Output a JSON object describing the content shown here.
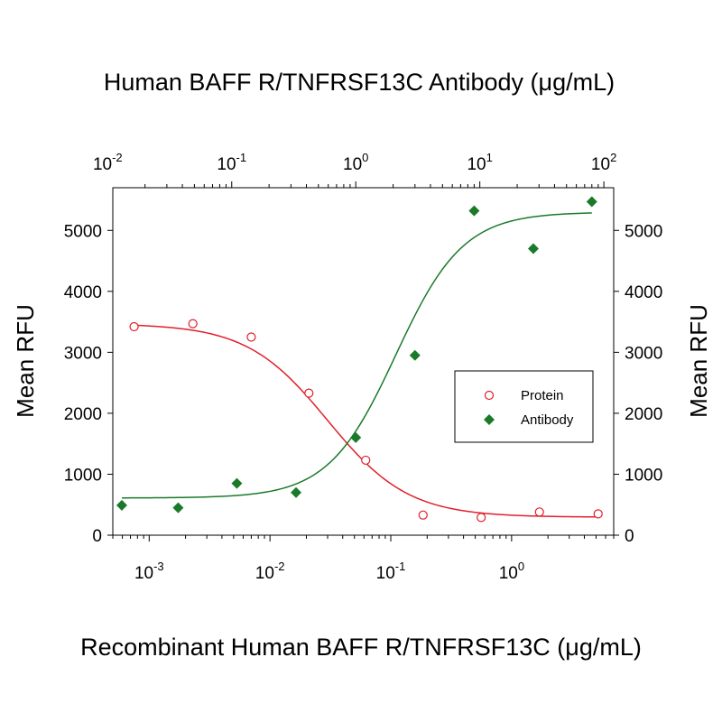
{
  "chart_data": {
    "type": "scatter",
    "top_xlabel_main": "Human BAFF R/TNFRSF13C Antibody (",
    "top_xlabel_unit": "μg/mL)",
    "xlabel_main": "Recombinant Human BAFF R/TNFRSF13C (",
    "xlabel_unit": "μg/mL)",
    "ylabel_left": "Mean RFU",
    "ylabel_right": "Mean RFU",
    "ylim": [
      0,
      5700
    ],
    "y_ticks": [
      "0",
      "1000",
      "2000",
      "3000",
      "4000",
      "5000"
    ],
    "x_bottom": {
      "scale": "log",
      "lim": [
        0.0005,
        7
      ],
      "tick_base": "10",
      "tick_exponents": [
        "-3",
        "-2",
        "-1",
        "0"
      ]
    },
    "x_top": {
      "scale": "log",
      "lim": [
        0.011,
        120
      ],
      "tick_base": "10",
      "tick_exponents": [
        "-2",
        "-1",
        "0",
        "1",
        "2"
      ]
    },
    "series": [
      {
        "name": "Protein",
        "axis": "bottom",
        "color": "#e0202c",
        "marker": "open-circle",
        "x": [
          0.00075,
          0.0023,
          0.007,
          0.021,
          0.062,
          0.185,
          0.56,
          1.7,
          5.2
        ],
        "y": [
          3420,
          3470,
          3250,
          2330,
          1230,
          330,
          290,
          380,
          350
        ],
        "fit": {
          "top": 3470,
          "bottom": 295,
          "ec50": 0.03,
          "hill": 1.3
        }
      },
      {
        "name": "Antibody",
        "axis": "top",
        "color": "#1a7a2a",
        "marker": "filled-diamond",
        "x": [
          0.013,
          0.037,
          0.11,
          0.33,
          1.0,
          3.0,
          9.0,
          27,
          80
        ],
        "y": [
          490,
          450,
          850,
          700,
          1600,
          2950,
          5320,
          4700,
          5470
        ],
        "fit": {
          "top": 5300,
          "bottom": 610,
          "ec50": 2.1,
          "hill": 1.6
        }
      }
    ],
    "legend_position": "center-right"
  }
}
